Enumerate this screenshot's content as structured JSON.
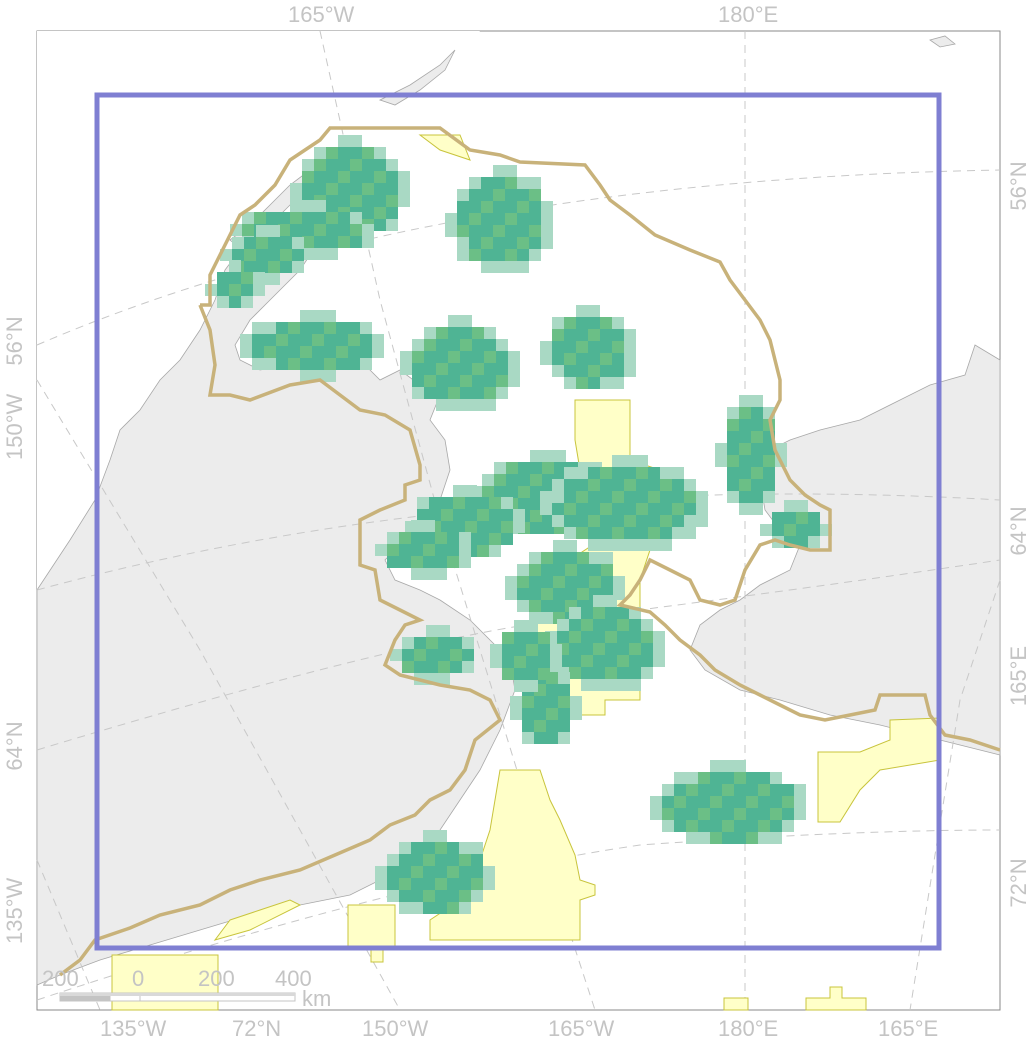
{
  "map": {
    "top_labels": [
      "165°W",
      "180°E"
    ],
    "bottom_labels": [
      "135°W",
      "72°N",
      "150°W",
      "165°W",
      "180°E",
      "165°E"
    ],
    "left_labels": [
      "56°N",
      "150°W",
      "64°N",
      "135°W"
    ],
    "right_labels": [
      "56°N",
      "64°N",
      "165°E",
      "72°N"
    ],
    "scalebar": {
      "ticks": [
        "200",
        "0",
        "200",
        "400"
      ],
      "unit": "km"
    },
    "colors": {
      "land": "#ececec",
      "land_stroke": "#a8a8a8",
      "graticule": "#c8c8c8",
      "frame": "#7f7fd2",
      "boundary": "#c8b27a",
      "green_dark": "#4fb494",
      "green_mid": "#6bbf86",
      "green_light": "#a9d9c4",
      "yellow": "#ffffc8",
      "yellow_stroke": "#c8c43c"
    }
  }
}
